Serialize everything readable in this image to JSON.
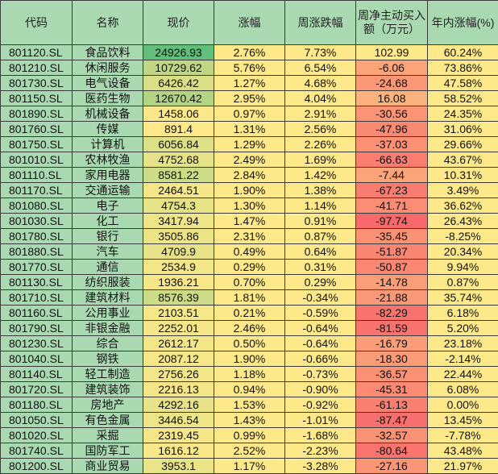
{
  "colors": {
    "header_bg": "#a9d9b1",
    "label_col_bg": "#a9d9b1",
    "plain_cell_bg": "#fee98a",
    "price_scale_low": "#fee98a",
    "price_scale_high": "#63be7b",
    "flow_scale_min": "#f8696b",
    "flow_scale_max": "#fee98a"
  },
  "headers": [
    "代码",
    "名称",
    "现价",
    "涨幅",
    "周涨跌幅",
    "周净主动买入额（万元）",
    "年内涨幅(%)"
  ],
  "rows": [
    [
      "801120.SL",
      "食品饮料",
      "24926.93",
      "2.76%",
      "7.73%",
      "102.99",
      "60.24%"
    ],
    [
      "801210.SL",
      "休闲服务",
      "10729.62",
      "5.76%",
      "6.54%",
      "-6.06",
      "73.86%"
    ],
    [
      "801730.SL",
      "电气设备",
      "6426.42",
      "1.27%",
      "4.68%",
      "-24.68",
      "47.58%"
    ],
    [
      "801150.SL",
      "医药生物",
      "12670.42",
      "2.95%",
      "4.04%",
      "16.08",
      "58.52%"
    ],
    [
      "801890.SL",
      "机械设备",
      "1458.06",
      "0.97%",
      "2.91%",
      "-30.56",
      "24.35%"
    ],
    [
      "801760.SL",
      "传媒",
      "891.4",
      "1.31%",
      "2.56%",
      "-47.96",
      "31.06%"
    ],
    [
      "801750.SL",
      "计算机",
      "6056.84",
      "1.29%",
      "2.26%",
      "-37.03",
      "29.66%"
    ],
    [
      "801010.SL",
      "农林牧渔",
      "4752.68",
      "2.49%",
      "1.69%",
      "-66.63",
      "43.67%"
    ],
    [
      "801110.SL",
      "家用电器",
      "8581.22",
      "2.84%",
      "1.42%",
      "-7.44",
      "10.31%"
    ],
    [
      "801170.SL",
      "交通运输",
      "2464.51",
      "1.90%",
      "1.38%",
      "-67.23",
      "3.49%"
    ],
    [
      "801080.SL",
      "电子",
      "4754.3",
      "1.30%",
      "1.14%",
      "-41.71",
      "36.62%"
    ],
    [
      "801030.SL",
      "化工",
      "3417.94",
      "1.47%",
      "0.91%",
      "-97.74",
      "26.43%"
    ],
    [
      "801780.SL",
      "银行",
      "3505.86",
      "2.31%",
      "0.87%",
      "-35.45",
      "-8.25%"
    ],
    [
      "801880.SL",
      "汽车",
      "4709.9",
      "0.49%",
      "0.64%",
      "-51.87",
      "20.34%"
    ],
    [
      "801770.SL",
      "通信",
      "2534.9",
      "0.29%",
      "0.31%",
      "-50.87",
      "9.94%"
    ],
    [
      "801130.SL",
      "纺织服装",
      "1936.21",
      "0.70%",
      "0.29%",
      "-14.78",
      "0.87%"
    ],
    [
      "801710.SL",
      "建筑材料",
      "8576.39",
      "1.81%",
      "-0.34%",
      "-21.88",
      "35.74%"
    ],
    [
      "801160.SL",
      "公用事业",
      "2103.51",
      "0.21%",
      "-0.59%",
      "-82.29",
      "6.18%"
    ],
    [
      "801790.SL",
      "非银金融",
      "2252.01",
      "2.46%",
      "-0.64%",
      "-81.59",
      "5.20%"
    ],
    [
      "801230.SL",
      "综合",
      "2612.17",
      "0.50%",
      "-0.64%",
      "-16.79",
      "23.18%"
    ],
    [
      "801040.SL",
      "钢铁",
      "2087.12",
      "1.90%",
      "-0.66%",
      "-18.30",
      "-2.14%"
    ],
    [
      "801140.SL",
      "轻工制造",
      "2756.26",
      "1.18%",
      "-0.73%",
      "-36.57",
      "22.44%"
    ],
    [
      "801720.SL",
      "建筑装饰",
      "2216.13",
      "0.94%",
      "-0.90%",
      "-45.31",
      "6.08%"
    ],
    [
      "801180.SL",
      "房地产",
      "4292.16",
      "1.53%",
      "-0.92%",
      "-61.13",
      "0.00%"
    ],
    [
      "801050.SL",
      "有色金属",
      "3446.54",
      "1.43%",
      "-1.01%",
      "-87.47",
      "13.45%"
    ],
    [
      "801020.SL",
      "采掘",
      "2319.45",
      "0.99%",
      "-1.68%",
      "-32.57",
      "-7.78%"
    ],
    [
      "801740.SL",
      "国防军工",
      "1616.12",
      "2.52%",
      "-2.23%",
      "-80.64",
      "43.48%"
    ],
    [
      "801200.SL",
      "商业贸易",
      "3953.1",
      "1.17%",
      "-3.28%",
      "-27.16",
      "21.97%"
    ]
  ]
}
